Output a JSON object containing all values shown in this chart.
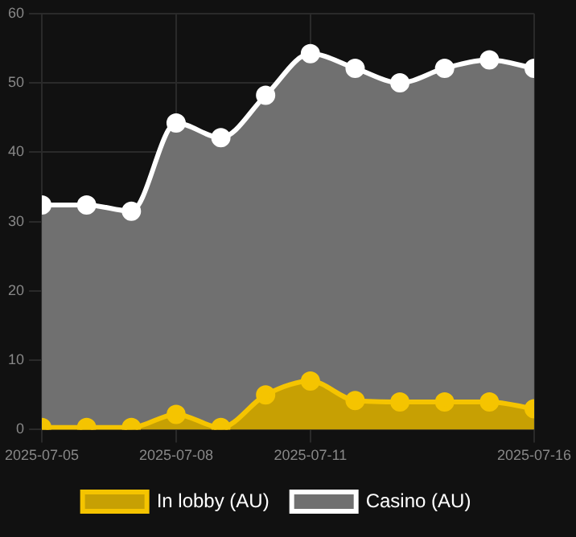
{
  "chart_data": {
    "type": "area",
    "x": [
      "2025-07-05",
      "2025-07-06",
      "2025-07-07",
      "2025-07-08",
      "2025-07-09",
      "2025-07-10",
      "2025-07-11",
      "2025-07-12",
      "2025-07-13",
      "2025-07-14",
      "2025-07-15",
      "2025-07-16"
    ],
    "series": [
      {
        "name": "In lobby (AU)",
        "color": "#f5c400",
        "values": [
          0.3,
          0.3,
          0.3,
          2.2,
          0.3,
          5,
          7,
          4.2,
          4,
          4,
          4,
          3
        ]
      },
      {
        "name": "Casino (AU)",
        "color": "#ffffff",
        "values": [
          32.4,
          32.4,
          31.5,
          44.2,
          42.1,
          48.2,
          54.2,
          52.1,
          50,
          52.1,
          53.3,
          52.1
        ]
      }
    ],
    "xlim": [
      "2025-07-05",
      "2025-07-16"
    ],
    "xticks": [
      "2025-07-05",
      "2025-07-08",
      "2025-07-11",
      "2025-07-16"
    ],
    "ylim": [
      0,
      60
    ],
    "yticks": [
      0,
      10,
      20,
      30,
      40,
      50,
      60
    ],
    "grid": true,
    "legend": "bottom",
    "marker": "circle",
    "line_style": "solid"
  }
}
